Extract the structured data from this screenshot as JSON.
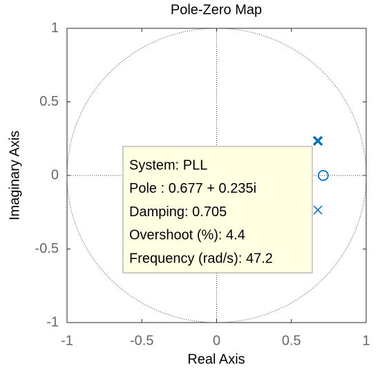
{
  "chart_data": {
    "type": "pole-zero",
    "title": "Pole-Zero Map",
    "xlabel": "Real Axis",
    "ylabel": "Imaginary Axis",
    "xlim": [
      -1,
      1
    ],
    "ylim": [
      -1,
      1
    ],
    "xticks": [
      -1,
      -0.5,
      0,
      0.5,
      1
    ],
    "yticks": [
      -1,
      -0.5,
      0,
      0.5,
      1
    ],
    "poles": {
      "x": [
        0.677,
        0.677
      ],
      "y": [
        0.235,
        -0.235
      ]
    },
    "zeros": {
      "x": [
        0.713
      ],
      "y": [
        0
      ]
    },
    "color": "#0072bd",
    "unit_circle": true,
    "datatip": [
      "System: PLL",
      "Pole : 0.677 + 0.235i",
      "Damping: 0.705",
      "Overshoot (%): 4.4",
      "Frequency (rad/s): 47.2"
    ]
  }
}
